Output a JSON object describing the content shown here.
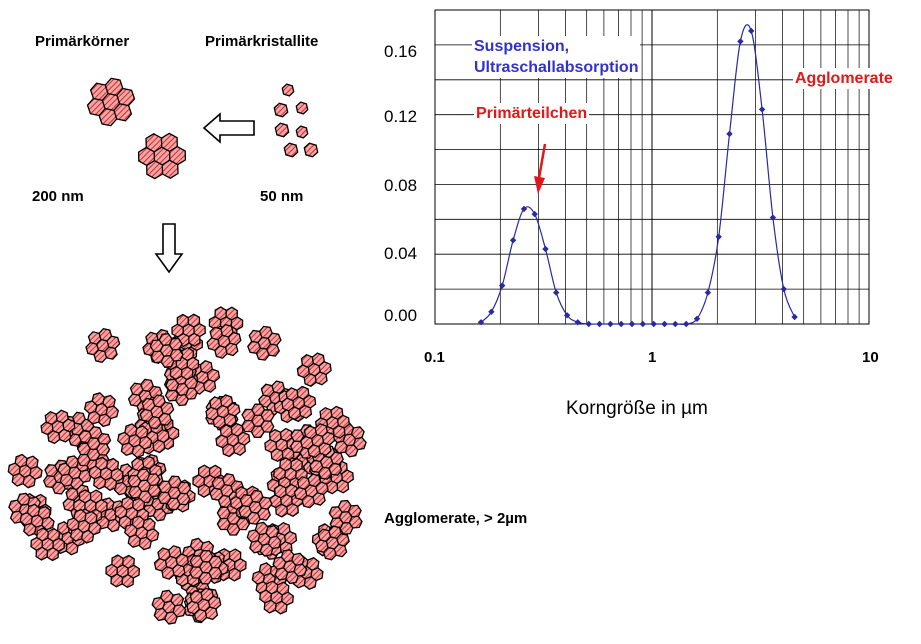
{
  "labels": {
    "primary_grains": "Primärkörner",
    "primary_crystallites": "Primärkristallite",
    "size_grains": "200 nm",
    "size_crystallites": "50 nm",
    "agglomerate_caption": "Agglomerate, > 2µm"
  },
  "colors": {
    "hex_fill": "#f4a4a4",
    "hex_hatch": "#c82020",
    "series": "#2a2aa0",
    "label_blue": "#3333cc",
    "label_red": "#e01818",
    "grid": "#000000"
  },
  "icons": {
    "arrow_left": "hollow-left-arrow-icon",
    "arrow_down": "hollow-down-arrow-icon"
  },
  "chart_data": {
    "type": "line",
    "x_scale": "log",
    "xlabel": "Korngröße in µm",
    "ylabel": "",
    "xlim": [
      0.1,
      10
    ],
    "ylim": [
      0,
      0.18
    ],
    "x_ticks": [
      "0.1",
      "1",
      "10"
    ],
    "y_ticks": [
      "0.00",
      "0.04",
      "0.08",
      "0.12",
      "0.16"
    ],
    "grid": true,
    "series": [
      {
        "name": "Suspension, Ultraschallabsorption",
        "x": [
          0.163,
          0.182,
          0.204,
          0.229,
          0.257,
          0.288,
          0.323,
          0.362,
          0.406,
          0.455,
          0.511,
          0.573,
          0.643,
          0.721,
          0.809,
          0.907,
          1.018,
          1.142,
          1.281,
          1.437,
          1.612,
          1.809,
          2.03,
          2.277,
          2.555,
          2.866,
          3.216,
          3.608,
          4.048,
          4.54
        ],
        "values": [
          0.001,
          0.007,
          0.022,
          0.048,
          0.066,
          0.063,
          0.043,
          0.018,
          0.005,
          0.001,
          0.0,
          0.0,
          0.0,
          0.0,
          0.0,
          0.0,
          0.0,
          0.0,
          0.0,
          0.0,
          0.003,
          0.018,
          0.05,
          0.109,
          0.162,
          0.168,
          0.123,
          0.061,
          0.02,
          0.004
        ]
      }
    ],
    "annotations": [
      {
        "text": "Suspension,\nUltraschallabsorption",
        "color": "#3333cc"
      },
      {
        "text": "Agglomerate",
        "color": "#e01818"
      },
      {
        "text": "Primärteilchen",
        "color": "#e01818"
      }
    ]
  }
}
